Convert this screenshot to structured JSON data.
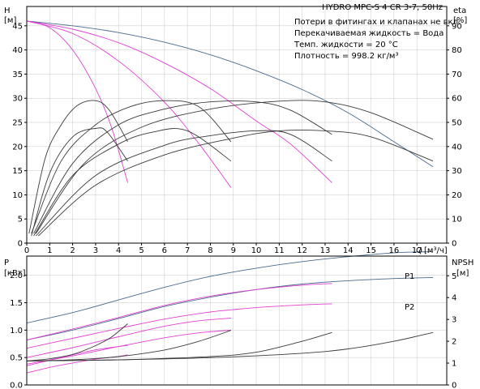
{
  "header": {
    "title": "HYDRO MPC-S 4 CR 3-7, 50Hz",
    "notes": [
      "Потери в фитингах и клапанах не вкл.",
      "Перекачиваемая жидкость = Вода",
      "Темп. жидкости = 20 °C",
      "Плотность = 998.2 кг/м³"
    ]
  },
  "colors": {
    "blue": "#4a6a8c",
    "magenta": "#e040d0",
    "black": "#3a3a3a"
  },
  "chart_data": [
    {
      "type": "line",
      "panel": "top",
      "ylabel_left": "H",
      "yunit_left": "[м]",
      "ylabel_right": "eta",
      "yunit_right": "[%]",
      "xlabel": "Q",
      "xunit": "[м³/ч]",
      "xlim": [
        0,
        18.3
      ],
      "ylim": [
        0,
        49
      ],
      "ylim_right": [
        0,
        98
      ],
      "x_ticks": [
        0,
        1,
        2,
        3,
        4,
        5,
        6,
        7,
        8,
        9,
        10,
        11,
        12,
        13,
        14,
        15,
        16,
        17
      ],
      "y_ticks": [
        0,
        5,
        10,
        15,
        20,
        25,
        30,
        35,
        40,
        45
      ],
      "y_ticks_right": [
        0,
        10,
        20,
        30,
        40,
        50,
        60,
        70,
        80,
        90
      ],
      "series": [
        {
          "kind": "head",
          "color": "blue",
          "x": [
            0,
            2,
            4,
            6,
            8,
            10,
            12,
            14,
            16,
            17.7
          ],
          "y": [
            46,
            45,
            43.6,
            41.6,
            39,
            35.7,
            31.8,
            27,
            21,
            15.8
          ]
        },
        {
          "kind": "head",
          "color": "magenta",
          "x": [
            0,
            2,
            4,
            6,
            8,
            10,
            11.5,
            13.3
          ],
          "y": [
            46,
            44.3,
            41.5,
            37.3,
            32,
            25.3,
            20.5,
            12.5
          ]
        },
        {
          "kind": "head",
          "color": "magenta",
          "x": [
            0,
            2,
            4,
            6,
            7.5,
            8.9
          ],
          "y": [
            46,
            43.4,
            37.7,
            29.2,
            20.6,
            11.5
          ]
        },
        {
          "kind": "head",
          "color": "magenta",
          "x": [
            0,
            1,
            2,
            3,
            3.7,
            4.4
          ],
          "y": [
            46,
            44.6,
            40,
            32,
            23.9,
            12.5
          ]
        },
        {
          "kind": "eta",
          "color": "black",
          "x": [
            0.1,
            0.8,
            1.5,
            2.2,
            3,
            3.6,
            4.4
          ],
          "y": [
            4,
            35,
            49,
            57,
            59,
            55,
            42
          ]
        },
        {
          "kind": "eta",
          "color": "black",
          "x": [
            0.2,
            1.5,
            3,
            4.5,
            6,
            7.5,
            8.9
          ],
          "y": [
            4,
            34,
            49,
            56.5,
            59,
            56.5,
            42
          ]
        },
        {
          "kind": "eta",
          "color": "black",
          "x": [
            0.3,
            2,
            4,
            6,
            8,
            10,
            11.5,
            13.3
          ],
          "y": [
            4,
            33,
            49,
            55.5,
            58.5,
            58.5,
            55,
            45
          ]
        },
        {
          "kind": "eta",
          "color": "black",
          "x": [
            0.4,
            2.5,
            5,
            8,
            11,
            13,
            15,
            17.7
          ],
          "y": [
            4,
            33,
            48,
            55.5,
            58.8,
            58.5,
            54,
            43
          ]
        },
        {
          "kind": "eta",
          "color": "black",
          "x": [
            0.2,
            1,
            2,
            3,
            3.5,
            4.4
          ],
          "y": [
            3,
            29,
            44,
            47.5,
            46,
            34
          ]
        },
        {
          "kind": "eta",
          "color": "black",
          "x": [
            0.3,
            2,
            4,
            5.5,
            7,
            8.9
          ],
          "y": [
            3,
            28,
            41,
            46,
            46.5,
            34
          ]
        },
        {
          "kind": "eta",
          "color": "black",
          "x": [
            0.4,
            3,
            6,
            8,
            10,
            11.5,
            13.3
          ],
          "y": [
            3,
            28,
            40.5,
            44.5,
            46.5,
            45,
            34
          ]
        },
        {
          "kind": "eta",
          "color": "black",
          "x": [
            0.5,
            3,
            6,
            9,
            11,
            13,
            15,
            17.7
          ],
          "y": [
            3,
            24,
            36.5,
            43.5,
            46.5,
            46.5,
            44,
            34
          ]
        }
      ]
    },
    {
      "type": "line",
      "panel": "bottom",
      "ylabel_left": "P",
      "yunit_left": "[кВт]",
      "ylabel_right": "NPSH",
      "yunit_right": "[м]",
      "xlim": [
        0,
        18.3
      ],
      "ylim": [
        0,
        2.35
      ],
      "ylim_right": [
        0,
        5.9
      ],
      "y_ticks": [
        0.0,
        0.5,
        1.0,
        1.5,
        2.0
      ],
      "y_tick_labels": [
        "0.0",
        "0.5",
        "1.0",
        "1.5",
        "2.0"
      ],
      "y_ticks_right": [
        0,
        1,
        2,
        3,
        4,
        5
      ],
      "series_labels": [
        "P1",
        "P2"
      ],
      "series": [
        {
          "kind": "power",
          "name": "P1",
          "color": "blue",
          "x": [
            0,
            2,
            4,
            6,
            8,
            10,
            12,
            14,
            16,
            17.7
          ],
          "y": [
            1.13,
            1.32,
            1.55,
            1.78,
            1.98,
            2.13,
            2.25,
            2.34,
            2.41,
            2.43
          ]
        },
        {
          "kind": "power",
          "name": "P2",
          "color": "blue",
          "x": [
            0,
            2,
            4,
            6,
            8,
            10,
            12,
            14,
            16,
            17.7
          ],
          "y": [
            0.82,
            1.0,
            1.21,
            1.43,
            1.6,
            1.74,
            1.84,
            1.9,
            1.94,
            1.96
          ]
        },
        {
          "kind": "power",
          "color": "magenta",
          "x": [
            0,
            2,
            4,
            6,
            8,
            10,
            12,
            13.3
          ],
          "y": [
            0.82,
            1.02,
            1.23,
            1.45,
            1.62,
            1.74,
            1.82,
            1.85
          ]
        },
        {
          "kind": "power",
          "color": "magenta",
          "x": [
            0,
            2,
            4,
            6,
            8,
            10,
            12,
            13.3
          ],
          "y": [
            0.67,
            0.85,
            1.03,
            1.2,
            1.33,
            1.41,
            1.46,
            1.48
          ]
        },
        {
          "kind": "power",
          "color": "magenta",
          "x": [
            0,
            2,
            4,
            6,
            7.5,
            8.9
          ],
          "y": [
            0.5,
            0.68,
            0.88,
            1.07,
            1.17,
            1.22
          ]
        },
        {
          "kind": "power",
          "color": "magenta",
          "x": [
            0,
            2,
            4,
            6,
            7.5,
            8.9
          ],
          "y": [
            0.38,
            0.53,
            0.7,
            0.86,
            0.95,
            1.0
          ]
        },
        {
          "kind": "power",
          "color": "magenta",
          "x": [
            0,
            1,
            2,
            3,
            4,
            4.4
          ],
          "y": [
            0.35,
            0.45,
            0.55,
            0.64,
            0.7,
            0.72
          ]
        },
        {
          "kind": "power",
          "color": "magenta",
          "x": [
            0,
            1,
            2,
            3,
            4,
            4.4
          ],
          "y": [
            0.22,
            0.32,
            0.4,
            0.47,
            0.52,
            0.55
          ]
        },
        {
          "kind": "npsh",
          "color": "black",
          "x": [
            0,
            4,
            8,
            10,
            12,
            13.3
          ],
          "y": [
            1.1,
            1.15,
            1.3,
            1.5,
            2.0,
            2.4
          ]
        },
        {
          "kind": "npsh",
          "color": "black",
          "x": [
            0,
            4,
            8,
            12,
            14,
            16,
            17.7
          ],
          "y": [
            1.1,
            1.15,
            1.25,
            1.45,
            1.65,
            2.0,
            2.4
          ]
        },
        {
          "kind": "npsh",
          "color": "black",
          "x": [
            0,
            2,
            4,
            6,
            7.5,
            8.9
          ],
          "y": [
            1.1,
            1.15,
            1.3,
            1.6,
            2.0,
            2.5
          ]
        },
        {
          "kind": "npsh",
          "color": "black",
          "x": [
            0,
            1,
            2,
            3,
            3.7,
            4.4
          ],
          "y": [
            1.1,
            1.2,
            1.4,
            1.8,
            2.2,
            2.8
          ]
        }
      ]
    }
  ]
}
